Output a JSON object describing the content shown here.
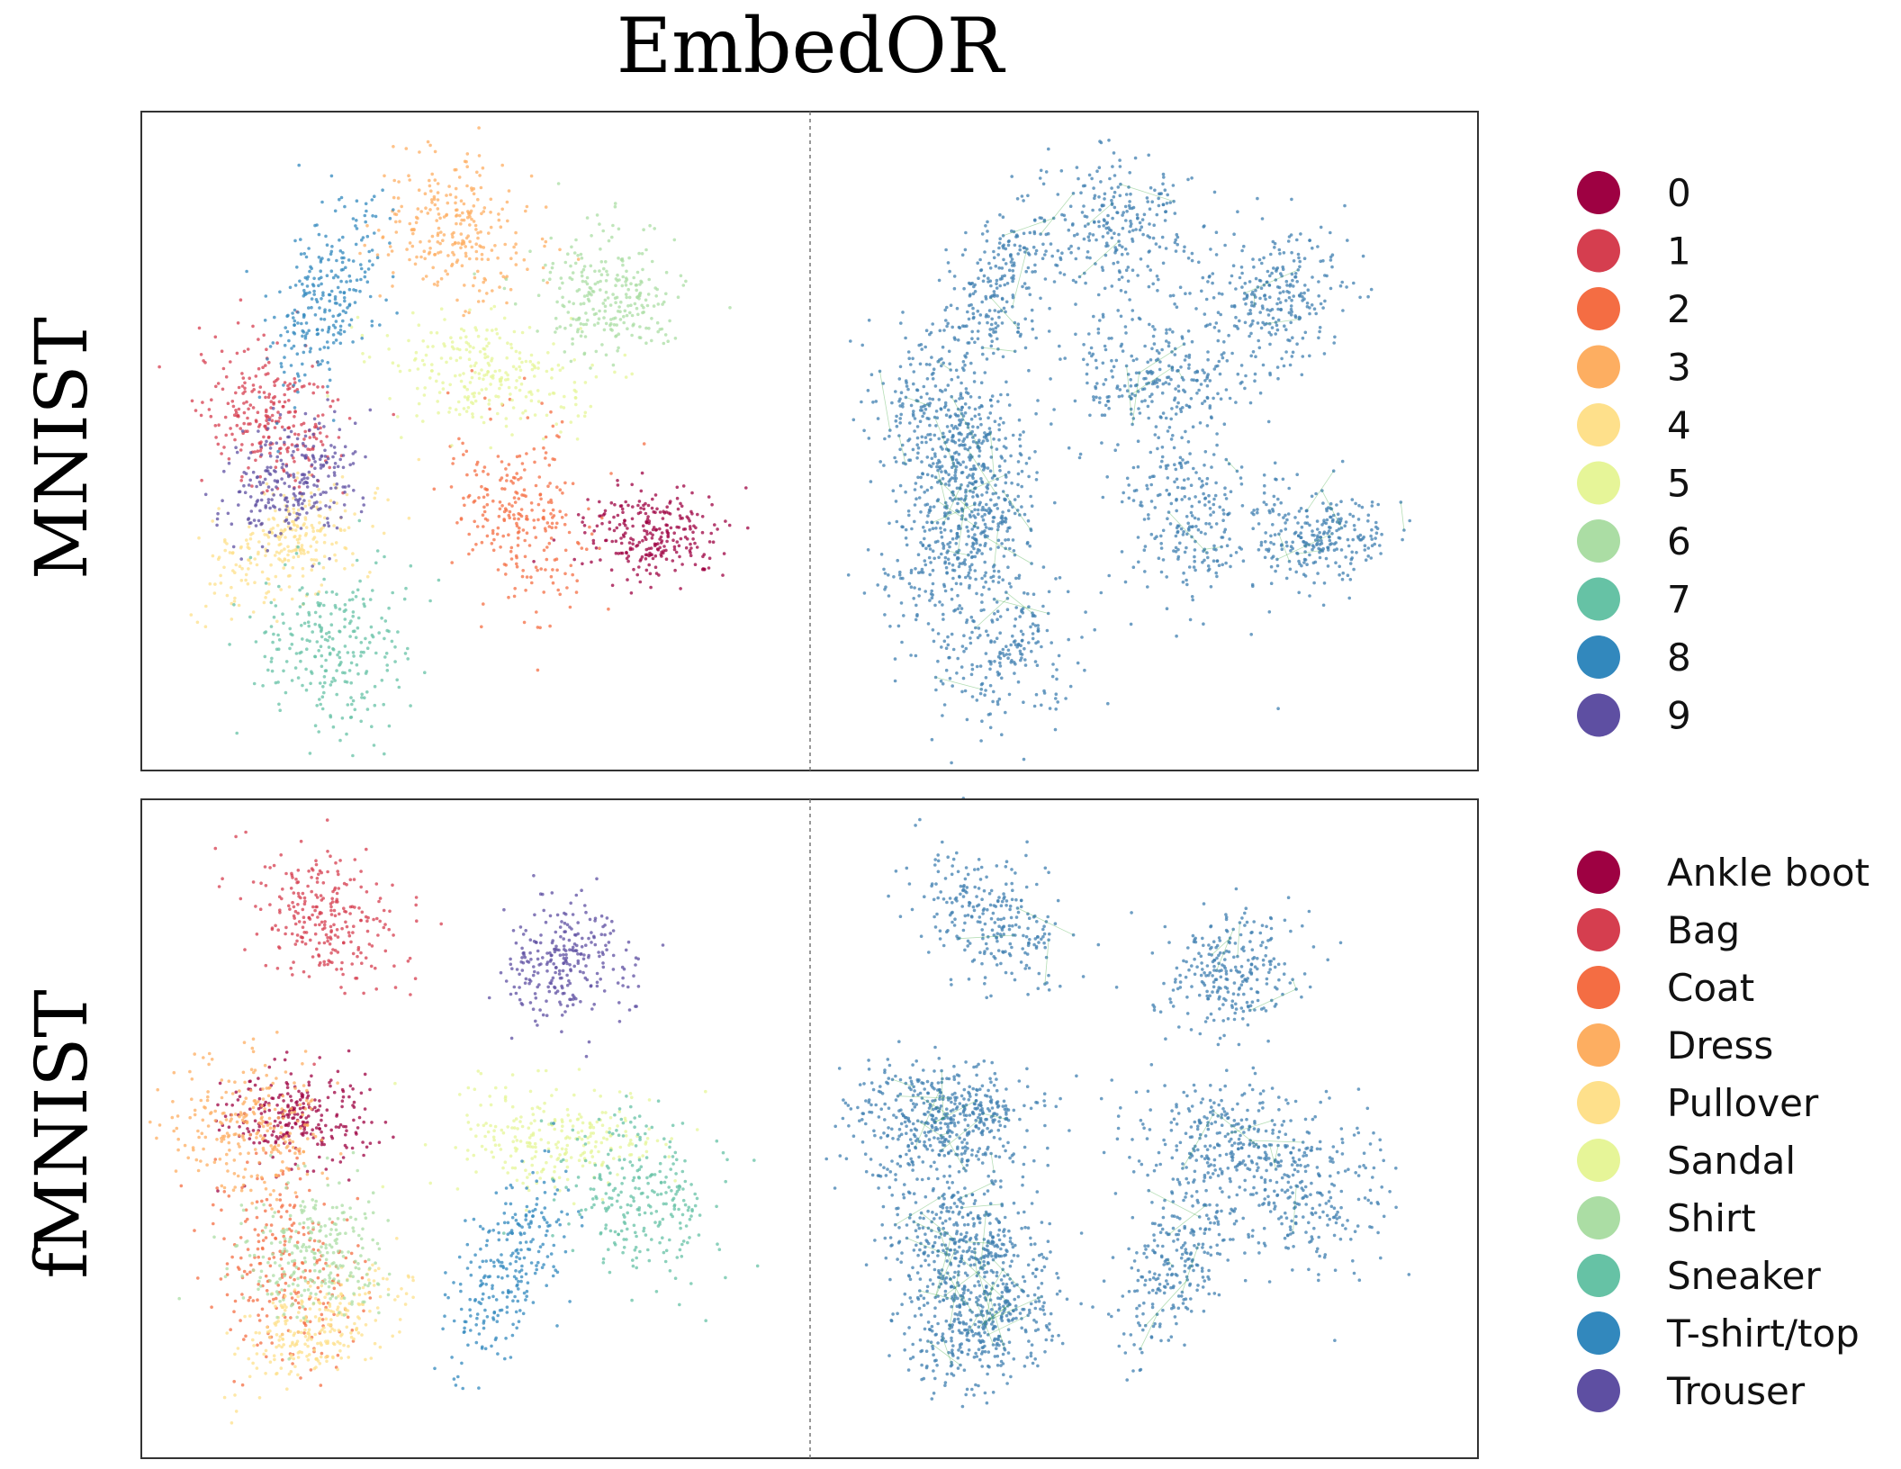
{
  "title": "EmbedOR",
  "rows": [
    {
      "dataset": "MNIST",
      "legend": [
        {
          "label": "0",
          "color": "#9e0142"
        },
        {
          "label": "1",
          "color": "#d53e4f"
        },
        {
          "label": "2",
          "color": "#f46d43"
        },
        {
          "label": "3",
          "color": "#fdae61"
        },
        {
          "label": "4",
          "color": "#fee08b"
        },
        {
          "label": "5",
          "color": "#e6f598"
        },
        {
          "label": "6",
          "color": "#abdda4"
        },
        {
          "label": "7",
          "color": "#66c2a5"
        },
        {
          "label": "8",
          "color": "#3288bd"
        },
        {
          "label": "9",
          "color": "#5e4fa2"
        }
      ]
    },
    {
      "dataset": "fMNIST",
      "legend": [
        {
          "label": "Ankle boot",
          "color": "#9e0142"
        },
        {
          "label": "Bag",
          "color": "#d53e4f"
        },
        {
          "label": "Coat",
          "color": "#f46d43"
        },
        {
          "label": "Dress",
          "color": "#fdae61"
        },
        {
          "label": "Pullover",
          "color": "#fee08b"
        },
        {
          "label": "Sandal",
          "color": "#e6f598"
        },
        {
          "label": "Shirt",
          "color": "#abdda4"
        },
        {
          "label": "Sneaker",
          "color": "#66c2a5"
        },
        {
          "label": "T-shirt/top",
          "color": "#3288bd"
        },
        {
          "label": "Trouser",
          "color": "#5e4fa2"
        }
      ]
    }
  ],
  "colors": {
    "graph_points": "#3f7fb0",
    "graph_edges": "#2ca02c",
    "frame": "#333333"
  },
  "chart_data": [
    {
      "type": "scatter",
      "dataset": "MNIST",
      "panels": [
        "class-colored embedding",
        "graph-overlay embedding"
      ],
      "axes": "off",
      "legend_placement": "right",
      "clusters": [
        {
          "class": "0",
          "center": [
            0.78,
            0.65
          ]
        },
        {
          "class": "1",
          "center": [
            0.18,
            0.46
          ]
        },
        {
          "class": "2",
          "center": [
            0.57,
            0.61
          ]
        },
        {
          "class": "3",
          "center": [
            0.47,
            0.16
          ]
        },
        {
          "class": "4",
          "center": [
            0.2,
            0.67
          ]
        },
        {
          "class": "5",
          "center": [
            0.51,
            0.39
          ]
        },
        {
          "class": "6",
          "center": [
            0.71,
            0.27
          ]
        },
        {
          "class": "7",
          "center": [
            0.27,
            0.83
          ]
        },
        {
          "class": "8",
          "center": [
            0.27,
            0.26
          ]
        },
        {
          "class": "9",
          "center": [
            0.21,
            0.56
          ]
        }
      ]
    },
    {
      "type": "scatter",
      "dataset": "fMNIST",
      "panels": [
        "class-colored embedding",
        "graph-overlay embedding"
      ],
      "axes": "off",
      "legend_placement": "right",
      "clusters": [
        {
          "class": "Ankle boot",
          "center": [
            0.22,
            0.48
          ]
        },
        {
          "class": "Bag",
          "center": [
            0.26,
            0.16
          ]
        },
        {
          "class": "Coat",
          "center": [
            0.2,
            0.72
          ]
        },
        {
          "class": "Dress",
          "center": [
            0.14,
            0.5
          ]
        },
        {
          "class": "Pullover",
          "center": [
            0.26,
            0.82
          ]
        },
        {
          "class": "Sandal",
          "center": [
            0.63,
            0.52
          ]
        },
        {
          "class": "Shirt",
          "center": [
            0.24,
            0.7
          ]
        },
        {
          "class": "Sneaker",
          "center": [
            0.76,
            0.6
          ]
        },
        {
          "class": "T-shirt/top",
          "center": [
            0.55,
            0.72
          ]
        },
        {
          "class": "Trouser",
          "center": [
            0.64,
            0.24
          ]
        }
      ]
    }
  ]
}
